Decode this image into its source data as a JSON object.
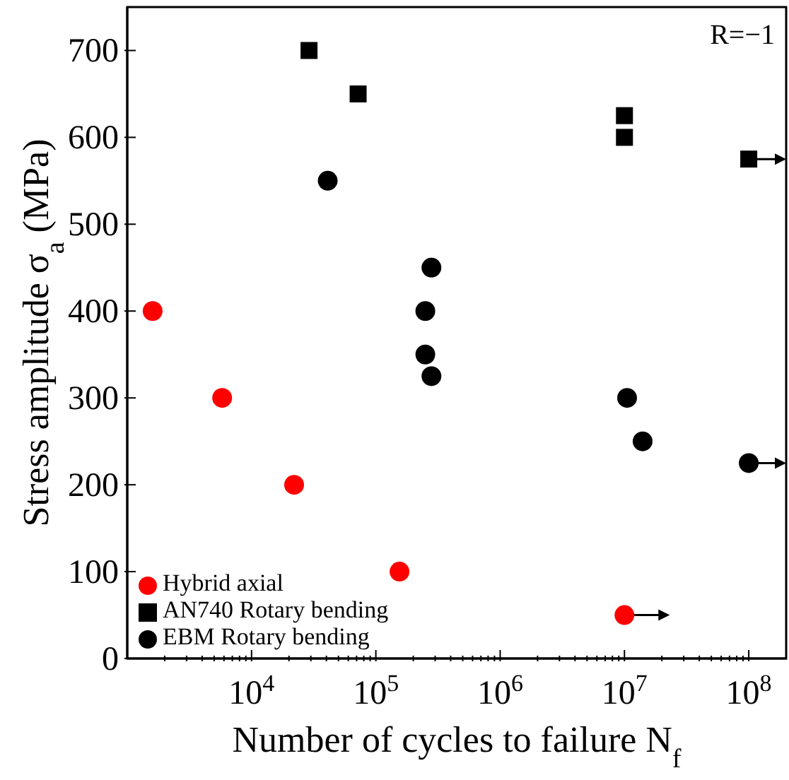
{
  "chart_data": {
    "type": "scatter",
    "xlabel": "Number of cycles to failure N$_{f}$",
    "ylabel": "Stress amplitude σ$_{a}$ (MPa)",
    "annotations": [
      "R=−1"
    ],
    "log": "x",
    "xlim": [
      1000,
      200000000
    ],
    "xticks": [
      {
        "value": 2000,
        "label": null
      },
      {
        "value": 3000,
        "label": null
      },
      {
        "value": 4000,
        "label": null
      },
      {
        "value": 5000,
        "label": null
      },
      {
        "value": 6000,
        "label": null
      },
      {
        "value": 7000,
        "label": null
      },
      {
        "value": 8000,
        "label": null
      },
      {
        "value": 9000,
        "label": null
      },
      {
        "value": 10000,
        "label": "10$^{4}$"
      },
      {
        "value": 20000,
        "label": null
      },
      {
        "value": 30000,
        "label": null
      },
      {
        "value": 40000,
        "label": null
      },
      {
        "value": 50000,
        "label": null
      },
      {
        "value": 60000,
        "label": null
      },
      {
        "value": 70000,
        "label": null
      },
      {
        "value": 80000,
        "label": null
      },
      {
        "value": 90000,
        "label": null
      },
      {
        "value": 100000,
        "label": "10$^{5}$"
      },
      {
        "value": 200000,
        "label": null
      },
      {
        "value": 300000,
        "label": null
      },
      {
        "value": 400000,
        "label": null
      },
      {
        "value": 500000,
        "label": null
      },
      {
        "value": 600000,
        "label": null
      },
      {
        "value": 700000,
        "label": null
      },
      {
        "value": 800000,
        "label": null
      },
      {
        "value": 900000,
        "label": null
      },
      {
        "value": 1000000,
        "label": "10$^{6}$"
      },
      {
        "value": 2000000,
        "label": null
      },
      {
        "value": 3000000,
        "label": null
      },
      {
        "value": 4000000,
        "label": null
      },
      {
        "value": 5000000,
        "label": null
      },
      {
        "value": 6000000,
        "label": null
      },
      {
        "value": 7000000,
        "label": null
      },
      {
        "value": 8000000,
        "label": null
      },
      {
        "value": 9000000,
        "label": null
      },
      {
        "value": 10000000,
        "label": "10$^{7}$"
      },
      {
        "value": 20000000,
        "label": null
      },
      {
        "value": 30000000,
        "label": null
      },
      {
        "value": 40000000,
        "label": null
      },
      {
        "value": 50000000,
        "label": null
      },
      {
        "value": 60000000,
        "label": null
      },
      {
        "value": 70000000,
        "label": null
      },
      {
        "value": 80000000,
        "label": null
      },
      {
        "value": 90000000,
        "label": null
      },
      {
        "value": 100000000,
        "label": "10$^{8}$"
      }
    ],
    "ylim": [
      0,
      750
    ],
    "yticks": [
      0,
      100,
      200,
      300,
      400,
      500,
      600,
      700
    ],
    "grid": false,
    "legend": "bottom left",
    "series": [
      {
        "name": "Hybrid axial",
        "color": "#ff0000",
        "marker": "circle",
        "x": [
          1600,
          5800,
          22000,
          155000,
          10000000
        ],
        "values": [
          400,
          300,
          200,
          100,
          50
        ]
      },
      {
        "name": "AN740 Rotary bending",
        "color": "#000000",
        "marker": "square",
        "x": [
          29000,
          72000,
          10000000,
          10000000,
          100000000
        ],
        "values": [
          700,
          650,
          625,
          600,
          575
        ]
      },
      {
        "name": "EBM Rotary bending",
        "color": "#000000",
        "marker": "circle",
        "x": [
          41000,
          280000,
          250000,
          250000,
          280000,
          10500000,
          14000000,
          100000000
        ],
        "values": [
          550,
          450,
          400,
          350,
          325,
          300,
          250,
          225
        ]
      }
    ]
  }
}
